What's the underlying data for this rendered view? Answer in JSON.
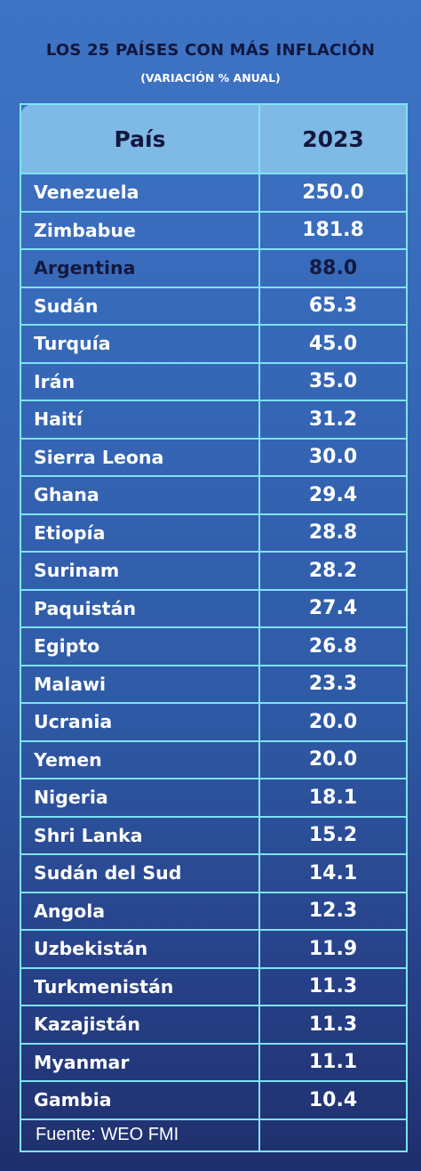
{
  "title": "LOS 25 PAÍSES CON MÁS INFLACIÓN",
  "subtitle": "(VARIACIÓN % ANUAL)",
  "columns": [
    "País",
    "2023"
  ],
  "source": "Fuente: WEO FMI",
  "colors": {
    "background_top": "#3f74c4",
    "background_bottom": "#1f2f6c",
    "grid": "#7ee3f4",
    "header_fill": "#7fb9e6",
    "title": "#10173f",
    "highlight_text": "#14193f"
  },
  "highlighted_country": "Argentina",
  "chart_data": {
    "type": "table",
    "title": "LOS 25 PAÍSES CON MÁS INFLACIÓN",
    "subtitle": "(VARIACIÓN % ANUAL)",
    "columns": [
      "País",
      "2023"
    ],
    "rows": [
      [
        "Venezuela",
        "250.0"
      ],
      [
        "Zimbabue",
        "181.8"
      ],
      [
        "Argentina",
        "88.0"
      ],
      [
        "Sudán",
        "65.3"
      ],
      [
        "Turquía",
        "45.0"
      ],
      [
        "Irán",
        "35.0"
      ],
      [
        "Haití",
        "31.2"
      ],
      [
        "Sierra Leona",
        "30.0"
      ],
      [
        "Ghana",
        "29.4"
      ],
      [
        "Etiopía",
        "28.8"
      ],
      [
        "Surinam",
        "28.2"
      ],
      [
        "Paquistán",
        "27.4"
      ],
      [
        "Egipto",
        "26.8"
      ],
      [
        "Malawi",
        "23.3"
      ],
      [
        "Ucrania",
        "20.0"
      ],
      [
        "Yemen",
        "20.0"
      ],
      [
        "Nigeria",
        "18.1"
      ],
      [
        "Shri Lanka",
        "15.2"
      ],
      [
        "Sudán del Sud",
        "14.1"
      ],
      [
        "Angola",
        "12.3"
      ],
      [
        "Uzbekistán",
        "11.9"
      ],
      [
        "Turkmenistán",
        "11.3"
      ],
      [
        "Kazajistán",
        "11.3"
      ],
      [
        "Myanmar",
        "11.1"
      ],
      [
        "Gambia",
        "10.4"
      ]
    ],
    "source": "Fuente: WEO FMI"
  }
}
